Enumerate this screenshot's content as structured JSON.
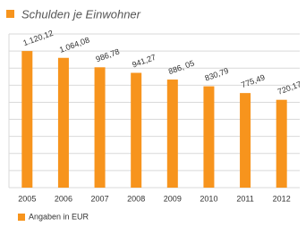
{
  "chart_data": {
    "type": "bar",
    "title": "Schulden je Einwohner",
    "categories": [
      "2005",
      "2006",
      "2007",
      "2008",
      "2009",
      "2010",
      "2011",
      "2012"
    ],
    "series": [
      {
        "name": "Angaben in EUR",
        "color": "#f7941d",
        "values": [
          1120.12,
          1064.08,
          986.78,
          941.27,
          886.05,
          830.79,
          775.49,
          720.17
        ],
        "value_labels": [
          "1.120,12",
          "1.064,08",
          "986,78",
          "941,27",
          "886, 05",
          "830,79",
          "775,49",
          "720,17"
        ]
      }
    ],
    "ylim": [
      0,
      1260
    ],
    "yticks": [
      0,
      140,
      280,
      420,
      560,
      700,
      840,
      980,
      1120,
      1260
    ],
    "grid": true
  }
}
